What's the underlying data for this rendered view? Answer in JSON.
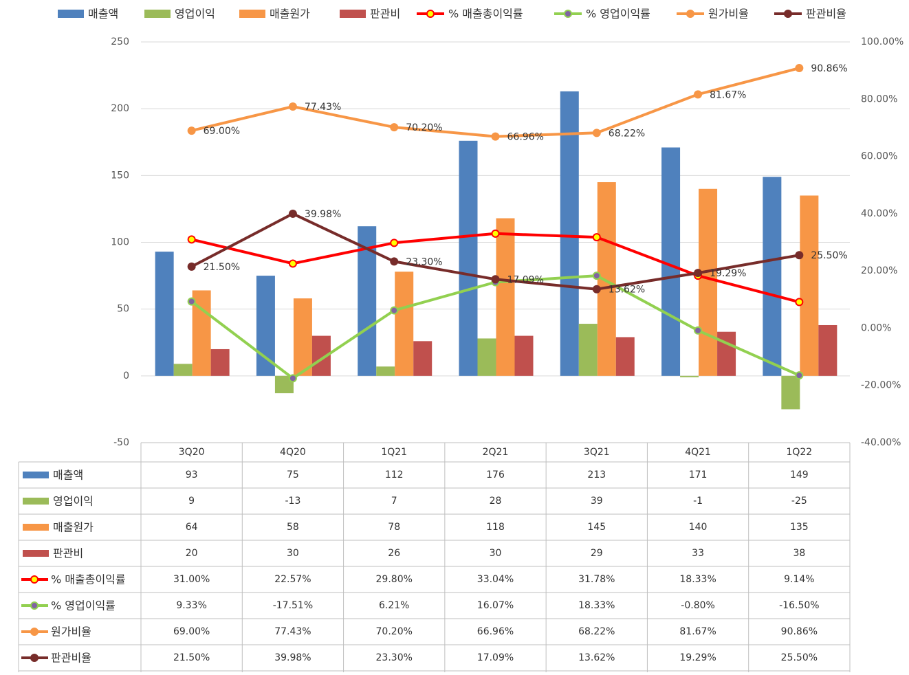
{
  "chart_data": {
    "type": "bar",
    "categories": [
      "3Q20",
      "4Q20",
      "1Q21",
      "2Q21",
      "3Q21",
      "4Q21",
      "1Q22"
    ],
    "y_left": {
      "ylim": [
        -50,
        250
      ],
      "ticks": [
        "-50",
        "0",
        "50",
        "100",
        "150",
        "200",
        "250"
      ]
    },
    "y_right": {
      "ylim": [
        -40,
        100
      ],
      "ticks": [
        "-40.00%",
        "-20.00%",
        "0.00%",
        "20.00%",
        "40.00%",
        "60.00%",
        "80.00%",
        "100.00%"
      ]
    },
    "legend_position": "top",
    "grid": "horizontal",
    "bar_series": [
      {
        "name": "매출액",
        "color": "#4F81BD",
        "values": [
          93,
          75,
          112,
          176,
          213,
          171,
          149
        ],
        "labels": [
          "93",
          "75",
          "112",
          "176",
          "213",
          "171",
          "149"
        ]
      },
      {
        "name": "영업이익",
        "color": "#9BBB59",
        "values": [
          9,
          -13,
          7,
          28,
          39,
          -1,
          -25
        ],
        "labels": [
          "9",
          "-13",
          "7",
          "28",
          "39",
          "-1",
          "-25"
        ]
      },
      {
        "name": "매출원가",
        "color": "#F79646",
        "values": [
          64,
          58,
          78,
          118,
          145,
          140,
          135
        ],
        "labels": [
          "64",
          "58",
          "78",
          "118",
          "145",
          "140",
          "135"
        ]
      },
      {
        "name": "판관비",
        "color": "#C0504D",
        "values": [
          20,
          30,
          26,
          30,
          29,
          33,
          38
        ],
        "labels": [
          "20",
          "30",
          "26",
          "30",
          "29",
          "33",
          "38"
        ]
      }
    ],
    "line_series": [
      {
        "name": "% 매출총이익률",
        "color": "#FF0000",
        "marker_fill": "#FFFF00",
        "marker_stroke": "#FF0000",
        "values": [
          31.0,
          22.57,
          29.8,
          33.04,
          31.78,
          18.33,
          9.14
        ],
        "labels": [
          "31.00%",
          "22.57%",
          "29.80%",
          "33.04%",
          "31.78%",
          "18.33%",
          "9.14%"
        ],
        "point_labels": []
      },
      {
        "name": "% 영업이익률",
        "color": "#92D050",
        "marker_fill": "#8064A2",
        "marker_stroke": "#92D050",
        "values": [
          9.33,
          -17.51,
          6.21,
          16.07,
          18.33,
          -0.8,
          -16.5
        ],
        "labels": [
          "9.33%",
          "-17.51%",
          "6.21%",
          "16.07%",
          "18.33%",
          "-0.80%",
          "-16.50%"
        ],
        "point_labels": []
      },
      {
        "name": "원가비율",
        "color": "#F79646",
        "marker_fill": "#F79646",
        "marker_stroke": "#F79646",
        "values": [
          69.0,
          77.43,
          70.2,
          66.96,
          68.22,
          81.67,
          90.86
        ],
        "labels": [
          "69.00%",
          "77.43%",
          "70.20%",
          "66.96%",
          "68.22%",
          "81.67%",
          "90.86%"
        ],
        "point_labels": [
          "69.00%",
          "77.43%",
          "70.20%",
          "66.96%",
          "68.22%",
          "81.67%",
          "90.86%"
        ]
      },
      {
        "name": "판관비율",
        "color": "#772C2A",
        "marker_fill": "#772C2A",
        "marker_stroke": "#772C2A",
        "values": [
          21.5,
          39.98,
          23.3,
          17.09,
          13.62,
          19.29,
          25.5
        ],
        "labels": [
          "21.50%",
          "39.98%",
          "23.30%",
          "17.09%",
          "13.62%",
          "19.29%",
          "25.50%"
        ],
        "point_labels": [
          "21.50%",
          "39.98%",
          "23.30%",
          "17.09%",
          "13.62%",
          "19.29%",
          "25.50%"
        ]
      }
    ]
  }
}
